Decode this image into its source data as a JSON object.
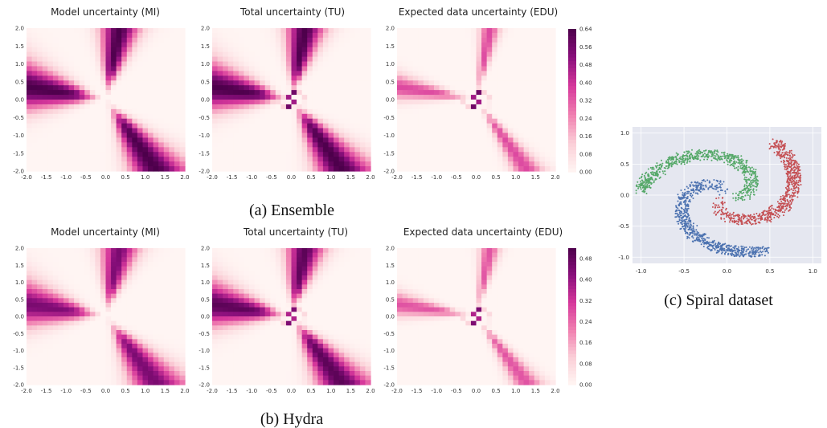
{
  "chart_data": [
    {
      "type": "heatmap",
      "panel": "a",
      "caption": "(a) Ensemble",
      "colormap": [
        "#fff5f3",
        "#fbcfd7",
        "#f07fb0",
        "#d6379b",
        "#8a0f7c",
        "#4d004b"
      ],
      "colorbar": {
        "vmin": 0.0,
        "vmax": 0.64,
        "ticks": [
          "0.00",
          "0.08",
          "0.16",
          "0.24",
          "0.32",
          "0.40",
          "0.48",
          "0.56",
          "0.64"
        ]
      },
      "xlim": [
        -2.0,
        2.0
      ],
      "ylim": [
        -2.0,
        2.0
      ],
      "xticks": [
        "-2.0",
        "-1.5",
        "-1.0",
        "-0.5",
        "0.0",
        "0.5",
        "1.0",
        "1.5",
        "2.0"
      ],
      "yticks": [
        "2.0",
        "1.5",
        "1.0",
        "0.5",
        "0.0",
        "-0.5",
        "-1.0",
        "-1.5",
        "-2.0"
      ],
      "subplots": [
        {
          "title": "Model uncertainty (MI)",
          "kind": "mi",
          "gain": 1.0
        },
        {
          "title": "Total uncertainty (TU)",
          "kind": "tu",
          "gain": 1.0
        },
        {
          "title": "Expected data uncertainty (EDU)",
          "kind": "edu",
          "gain": 1.0
        }
      ]
    },
    {
      "type": "heatmap",
      "panel": "b",
      "caption": "(b) Hydra",
      "colormap": [
        "#fff5f3",
        "#fbcfd7",
        "#f07fb0",
        "#d6379b",
        "#8a0f7c",
        "#4d004b"
      ],
      "colorbar": {
        "vmin": 0.0,
        "vmax": 0.52,
        "ticks": [
          "0.00",
          "0.08",
          "0.16",
          "0.24",
          "0.32",
          "0.40",
          "0.48"
        ]
      },
      "xlim": [
        -2.0,
        2.0
      ],
      "ylim": [
        -2.0,
        2.0
      ],
      "xticks": [
        "-2.0",
        "-1.5",
        "-1.0",
        "-0.5",
        "0.0",
        "0.5",
        "1.0",
        "1.5",
        "2.0"
      ],
      "yticks": [
        "2.0",
        "1.5",
        "1.0",
        "0.5",
        "0.0",
        "-0.5",
        "-1.0",
        "-1.5",
        "-2.0"
      ],
      "subplots": [
        {
          "title": "Model uncertainty (MI)",
          "kind": "mi",
          "gain": 0.85
        },
        {
          "title": "Total uncertainty (TU)",
          "kind": "tu",
          "gain": 0.95
        },
        {
          "title": "Expected data uncertainty (EDU)",
          "kind": "edu",
          "gain": 0.95
        }
      ]
    },
    {
      "type": "scatter",
      "panel": "c",
      "caption": "(c) Spiral dataset",
      "xlim": [
        -1.1,
        1.1
      ],
      "ylim": [
        -1.1,
        1.1
      ],
      "xticks": [
        "-1.0",
        "-0.5",
        "0.0",
        "0.5",
        "1.0"
      ],
      "yticks": [
        "1.0",
        "0.5",
        "0.0",
        "-0.5",
        "-1.0"
      ],
      "background": "#e5e7f0",
      "series": [
        {
          "color": "#4c72b0",
          "arm_angle_deg": 90,
          "n_points": 700
        },
        {
          "color": "#c44e52",
          "arm_angle_deg": 210,
          "n_points": 700
        },
        {
          "color": "#55a868",
          "arm_angle_deg": 330,
          "n_points": 700
        }
      ]
    }
  ]
}
